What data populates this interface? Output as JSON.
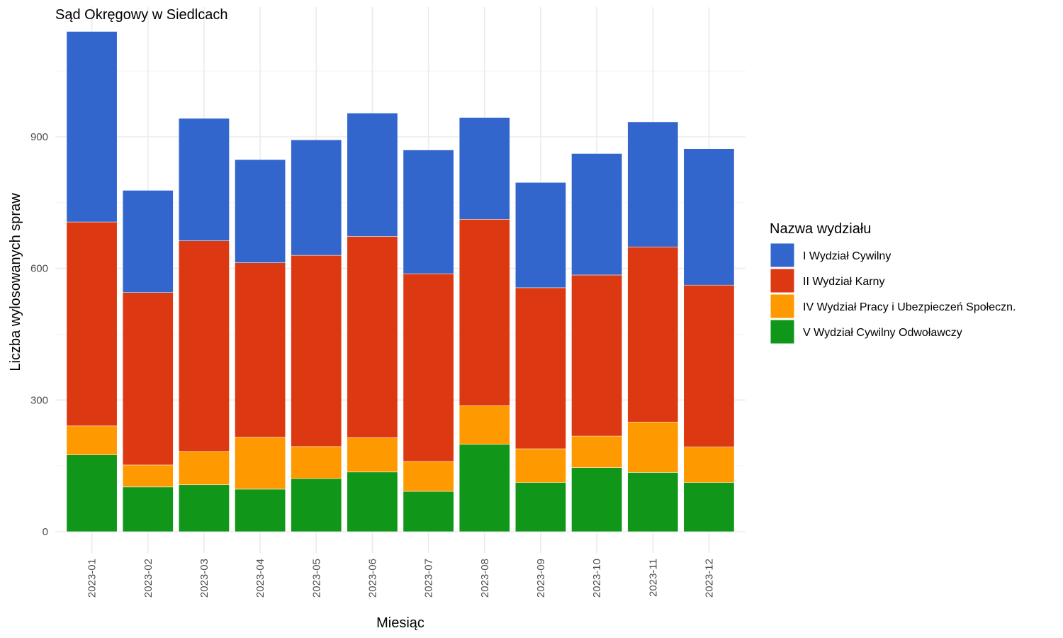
{
  "chart_data": {
    "type": "bar",
    "stacked": true,
    "title": "Sąd Okręgowy w Siedlcach",
    "xlabel": "Miesiąc",
    "ylabel": "Liczba wylosowanych spraw",
    "ylim": [
      0,
      1150
    ],
    "y_ticks": [
      0,
      300,
      600,
      900
    ],
    "grid": true,
    "legend_placement": "right",
    "legend_title": "Nazwa wydziału",
    "categories": [
      "2023-01",
      "2023-02",
      "2023-03",
      "2023-04",
      "2023-05",
      "2023-06",
      "2023-07",
      "2023-08",
      "2023-09",
      "2023-10",
      "2023-11",
      "2023-12"
    ],
    "series": [
      {
        "name": "V Wydział Cywilny Odwoławczy",
        "color": "#109618",
        "values": [
          175,
          102,
          107,
          97,
          121,
          136,
          92,
          199,
          112,
          146,
          135,
          112
        ]
      },
      {
        "name": "IV Wydział Pracy i Ubezpieczeń Społeczn.",
        "color": "#FF9900",
        "values": [
          66,
          50,
          76,
          118,
          73,
          78,
          68,
          88,
          77,
          72,
          115,
          81
        ]
      },
      {
        "name": "II Wydział Karny",
        "color": "#DC3912",
        "values": [
          465,
          393,
          480,
          398,
          436,
          459,
          428,
          425,
          367,
          367,
          399,
          369
        ]
      },
      {
        "name": "I Wydział Cywilny",
        "color": "#3366CC",
        "values": [
          434,
          233,
          279,
          235,
          263,
          281,
          282,
          232,
          240,
          277,
          285,
          311
        ]
      }
    ],
    "legend_order": [
      "I Wydział Cywilny",
      "II Wydział Karny",
      "IV Wydział Pracy i Ubezpieczeń Społeczn.",
      "V Wydział Cywilny Odwoławczy"
    ]
  }
}
